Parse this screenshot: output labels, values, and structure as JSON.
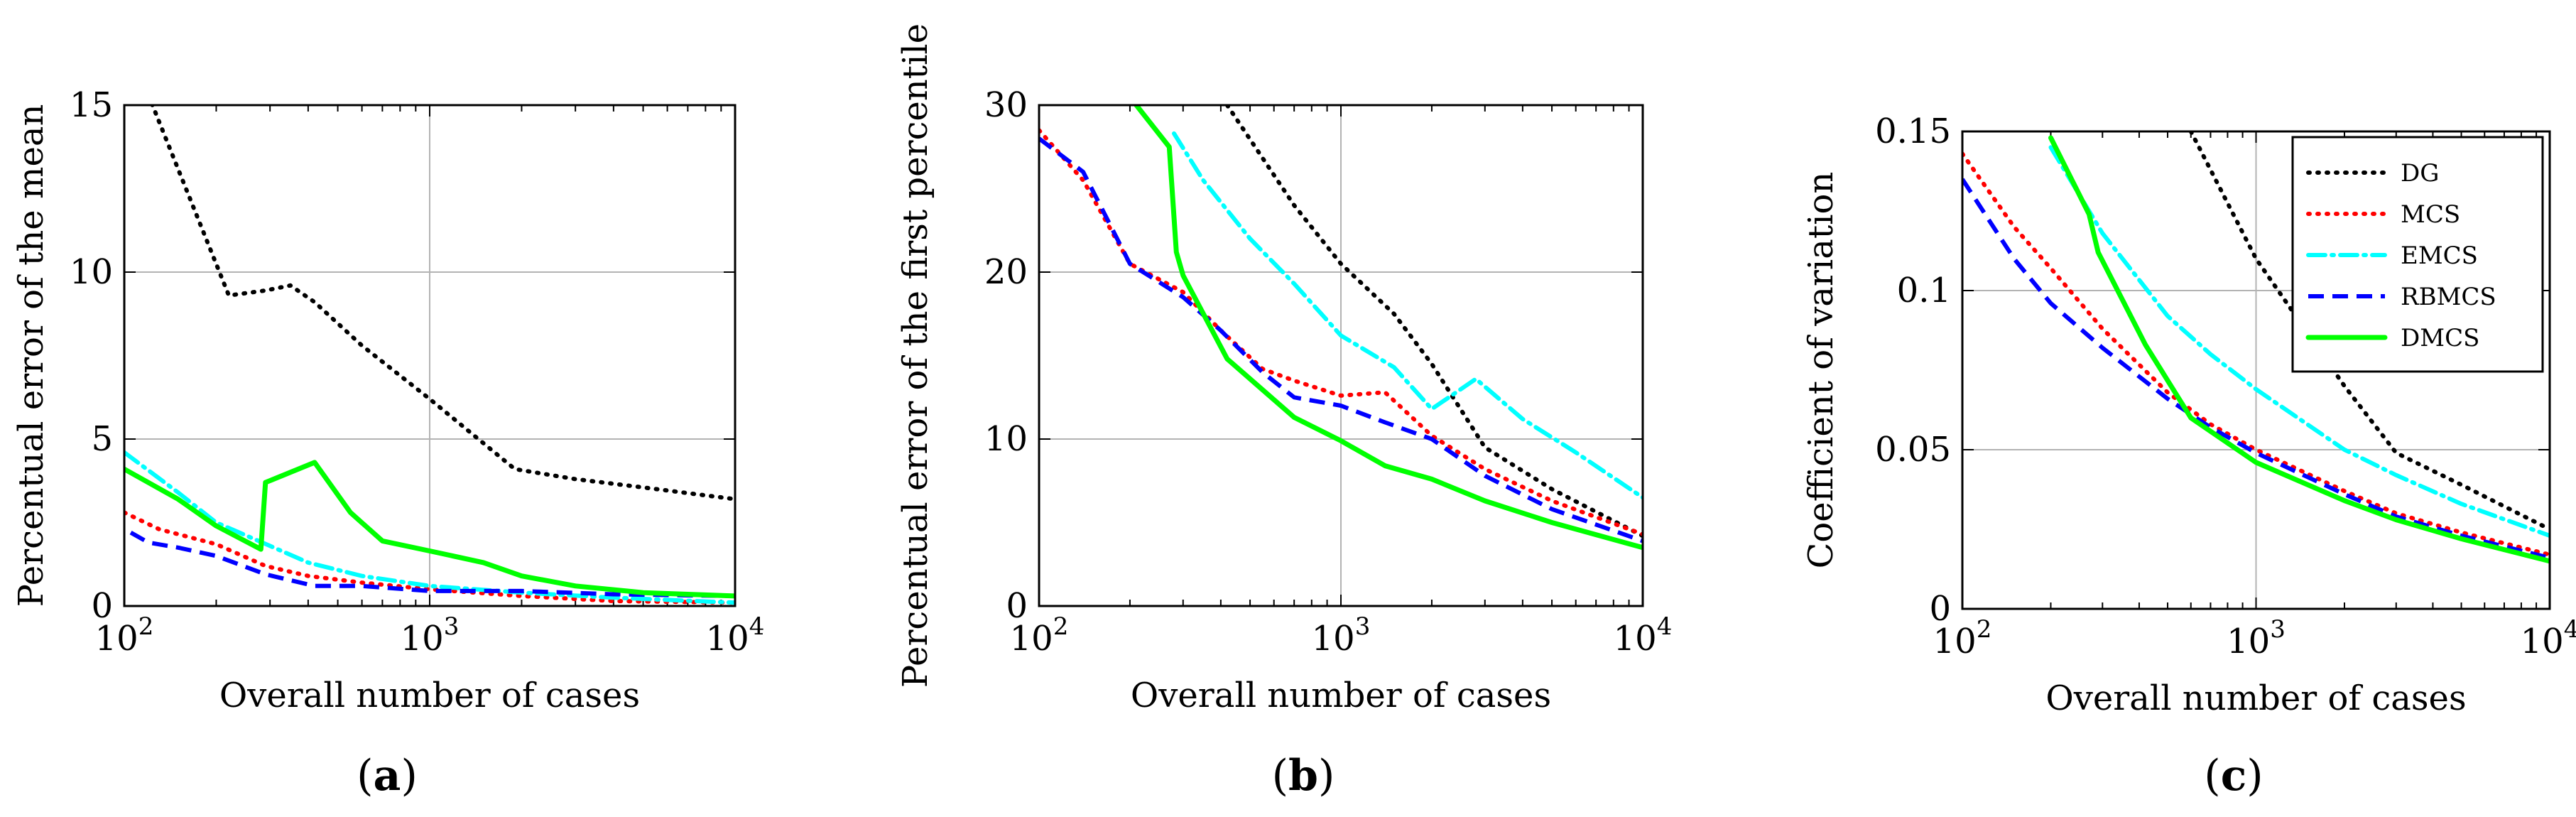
{
  "chart_data": [
    {
      "type": "line",
      "panel": "(a)",
      "panel_letter": "a",
      "xlabel": "Overall number of cases",
      "ylabel": "Percentual error of the mean",
      "xscale": "log",
      "xlim": [
        100,
        10000
      ],
      "ylim": [
        0,
        15
      ],
      "yticks": [
        0,
        5,
        10,
        15
      ],
      "ytick_labels": [
        "0",
        "5",
        "10",
        "15"
      ],
      "grid": true,
      "series": [
        {
          "name": "DG",
          "x": [
            120,
            220,
            290,
            350,
            420,
            600,
            1000,
            1900,
            3000,
            5000,
            10000
          ],
          "y": [
            15.3,
            9.3,
            9.45,
            9.6,
            9.1,
            7.8,
            6.2,
            4.1,
            3.8,
            3.55,
            3.2
          ]
        },
        {
          "name": "MCS",
          "x": [
            100,
            130,
            200,
            290,
            400,
            600,
            1000,
            2000,
            4000,
            10000
          ],
          "y": [
            2.8,
            2.3,
            1.85,
            1.2,
            0.9,
            0.7,
            0.5,
            0.3,
            0.15,
            0.1
          ]
        },
        {
          "name": "EMCS",
          "x": [
            100,
            150,
            200,
            300,
            400,
            600,
            1000,
            2000,
            4000,
            10000
          ],
          "y": [
            4.6,
            3.4,
            2.5,
            1.8,
            1.3,
            0.9,
            0.6,
            0.4,
            0.25,
            0.1
          ]
        },
        {
          "name": "RBMCS",
          "x": [
            105,
            120,
            150,
            200,
            290,
            420,
            600,
            1000,
            2000,
            4000,
            10000
          ],
          "y": [
            2.2,
            1.9,
            1.75,
            1.5,
            0.95,
            0.6,
            0.6,
            0.45,
            0.45,
            0.35,
            0.3
          ]
        },
        {
          "name": "DMCS",
          "x": [
            100,
            150,
            200,
            280,
            290,
            420,
            550,
            700,
            1000,
            1500,
            2000,
            3000,
            5000,
            10000
          ],
          "y": [
            4.1,
            3.2,
            2.4,
            1.7,
            3.7,
            4.3,
            2.8,
            1.95,
            1.65,
            1.3,
            0.9,
            0.6,
            0.4,
            0.3
          ]
        }
      ]
    },
    {
      "type": "line",
      "panel": "(b)",
      "panel_letter": "b",
      "xlabel": "Overall number of cases",
      "ylabel": "Percentual error of the first percentile",
      "xscale": "log",
      "xlim": [
        100,
        10000
      ],
      "ylim": [
        0,
        30
      ],
      "yticks": [
        0,
        10,
        20,
        30
      ],
      "ytick_labels": [
        "0",
        "10",
        "20",
        "30"
      ],
      "grid": true,
      "series": [
        {
          "name": "DG",
          "x": [
            420,
            700,
            1000,
            1500,
            2000,
            3000,
            5000,
            10000
          ],
          "y": [
            30,
            24,
            20.5,
            17.5,
            14.5,
            9.5,
            7,
            4.2
          ]
        },
        {
          "name": "MCS",
          "x": [
            100,
            140,
            200,
            300,
            400,
            550,
            700,
            1000,
            1400,
            2000,
            3000,
            5000,
            10000
          ],
          "y": [
            28.5,
            25.5,
            20.5,
            18.8,
            16.5,
            14.2,
            13.5,
            12.6,
            12.8,
            10.2,
            8.2,
            6.3,
            4.3
          ]
        },
        {
          "name": "EMCS",
          "x": [
            280,
            350,
            500,
            700,
            1000,
            1500,
            2000,
            2800,
            4000,
            6000,
            10000
          ],
          "y": [
            28.3,
            25.5,
            22,
            19.3,
            16.2,
            14.3,
            11.8,
            13.6,
            11.2,
            9.2,
            6.5
          ]
        },
        {
          "name": "RBMCS",
          "x": [
            100,
            140,
            200,
            300,
            400,
            550,
            700,
            1000,
            1400,
            2000,
            3000,
            5000,
            10000
          ],
          "y": [
            28,
            26,
            20.5,
            18.5,
            16.5,
            14,
            12.5,
            12,
            11,
            10,
            7.8,
            5.8,
            3.9
          ]
        },
        {
          "name": "DMCS",
          "x": [
            210,
            270,
            285,
            300,
            420,
            700,
            1000,
            1400,
            2000,
            3000,
            5000,
            10000
          ],
          "y": [
            30,
            27.5,
            21.2,
            19.8,
            14.8,
            11.3,
            9.9,
            8.4,
            7.6,
            6.3,
            5,
            3.5
          ]
        }
      ]
    },
    {
      "type": "line",
      "panel": "(c)",
      "panel_letter": "c",
      "xlabel": "Overall number of cases",
      "ylabel": "Coefficient of variation",
      "xscale": "log",
      "xlim": [
        100,
        10000
      ],
      "ylim": [
        0,
        0.15
      ],
      "yticks": [
        0,
        0.05,
        0.1,
        0.15
      ],
      "ytick_labels": [
        "0",
        "0.05",
        "0.1",
        "0.15"
      ],
      "grid": true,
      "legend_position": "top-right",
      "series": [
        {
          "name": "DG",
          "x": [
            600,
            1000,
            2000,
            3000,
            5000,
            10000
          ],
          "y": [
            0.15,
            0.11,
            0.07,
            0.049,
            0.039,
            0.025
          ]
        },
        {
          "name": "MCS",
          "x": [
            100,
            150,
            200,
            300,
            500,
            700,
            1000,
            2000,
            3000,
            5000,
            10000
          ],
          "y": [
            0.143,
            0.12,
            0.107,
            0.088,
            0.068,
            0.058,
            0.05,
            0.037,
            0.03,
            0.024,
            0.017
          ]
        },
        {
          "name": "EMCS",
          "x": [
            200,
            300,
            500,
            700,
            1000,
            2000,
            3000,
            5000,
            10000
          ],
          "y": [
            0.145,
            0.118,
            0.092,
            0.08,
            0.069,
            0.05,
            0.042,
            0.033,
            0.023
          ]
        },
        {
          "name": "RBMCS",
          "x": [
            100,
            150,
            200,
            300,
            500,
            700,
            1000,
            2000,
            3000,
            5000,
            10000
          ],
          "y": [
            0.135,
            0.11,
            0.096,
            0.082,
            0.066,
            0.057,
            0.049,
            0.036,
            0.029,
            0.023,
            0.016
          ]
        },
        {
          "name": "DMCS",
          "x": [
            200,
            270,
            290,
            420,
            600,
            1000,
            2000,
            3000,
            5000,
            10000
          ],
          "y": [
            0.148,
            0.124,
            0.112,
            0.083,
            0.06,
            0.046,
            0.034,
            0.028,
            0.022,
            0.015
          ]
        }
      ],
      "legend": [
        "DG",
        "MCS",
        "EMCS",
        "RBMCS",
        "DMCS"
      ]
    }
  ],
  "xtick_labels": {
    "t100": {
      "base": "10",
      "exp": "2"
    },
    "t1000": {
      "base": "10",
      "exp": "3"
    },
    "t10000": {
      "base": "10",
      "exp": "4"
    }
  },
  "series_styles": {
    "DG": {
      "color": "#000000",
      "dash": "dotted"
    },
    "MCS": {
      "color": "#ff0000",
      "dash": "dotted"
    },
    "EMCS": {
      "color": "#00ffff",
      "dash": "dashdot"
    },
    "RBMCS": {
      "color": "#0000ff",
      "dash": "dashed"
    },
    "DMCS": {
      "color": "#00ff00",
      "dash": "solid"
    }
  }
}
